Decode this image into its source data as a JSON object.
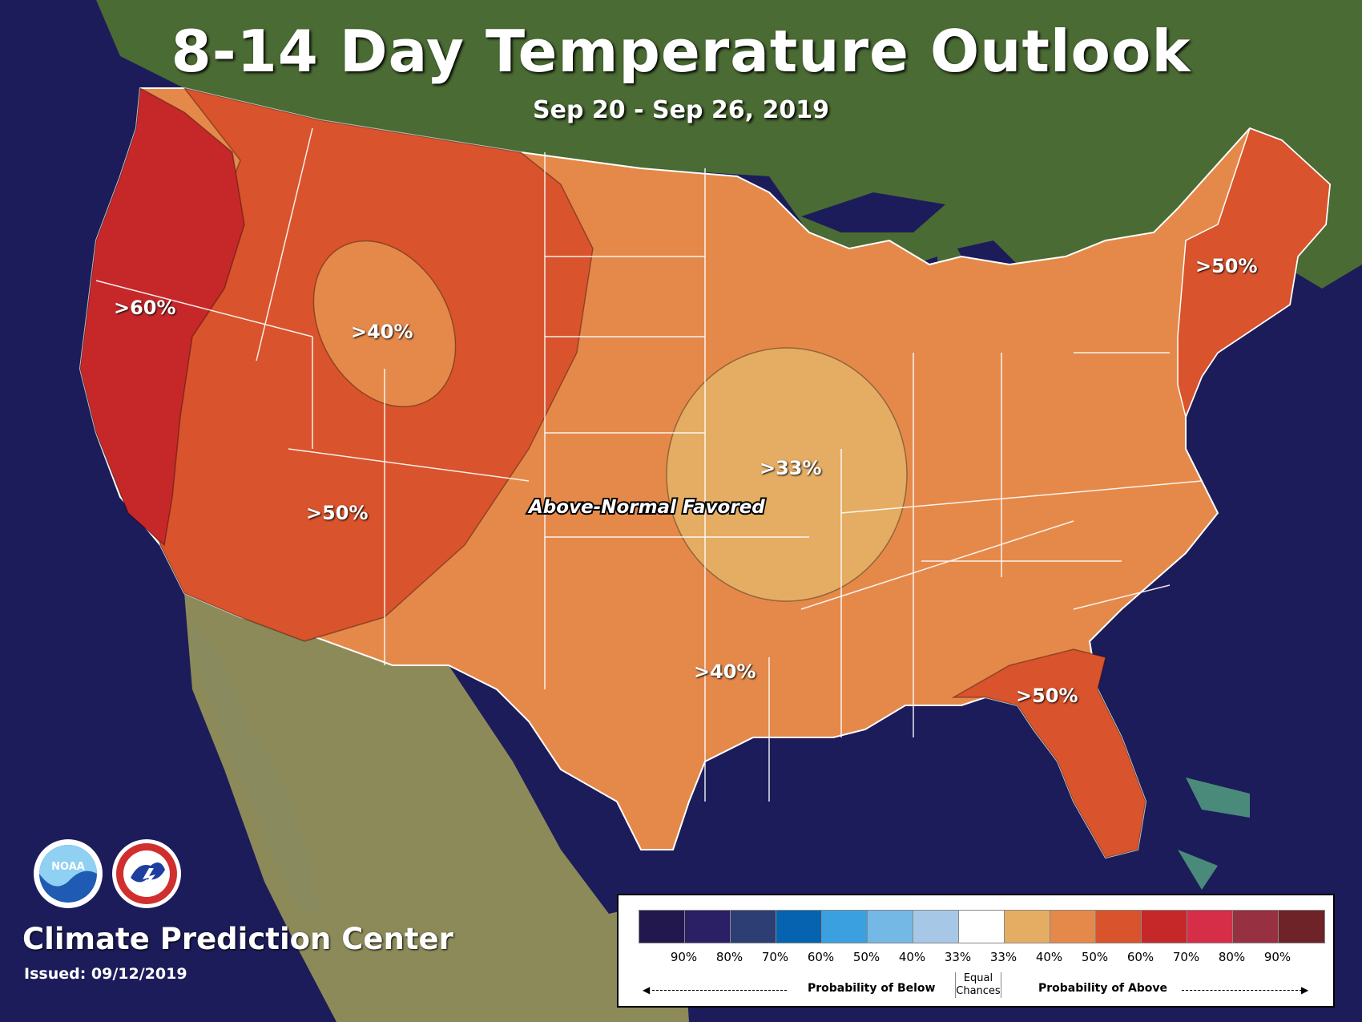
{
  "title": "8-14 Day Temperature Outlook",
  "subtitle": "Sep 20 - Sep 26, 2019",
  "map_labels": {
    "west_coast": ">60%",
    "northern_rockies": ">40%",
    "southwest": ">50%",
    "midwest": ">33%",
    "texas": ">40%",
    "northeast": ">50%",
    "southeast": ">50%",
    "favored": "Above-Normal Favored"
  },
  "footer": {
    "org": "Climate Prediction Center",
    "issued": "Issued: 09/12/2019"
  },
  "logos": {
    "noaa": "noaa-logo",
    "nws": "national-weather-service-logo"
  },
  "legend": {
    "colors": [
      "#22184d",
      "#2b1f66",
      "#2d3e74",
      "#0563b0",
      "#3aa0e0",
      "#74b8e6",
      "#a6c8e6",
      "#ffffff",
      "#e4ad63",
      "#e5894a",
      "#d9532c",
      "#c6282a",
      "#d62e48",
      "#973040",
      "#6d2328"
    ],
    "tick_labels": [
      "90%",
      "80%",
      "70%",
      "60%",
      "50%",
      "40%",
      "33%",
      "33%",
      "40%",
      "50%",
      "60%",
      "70%",
      "80%",
      "90%"
    ],
    "below_label": "Probability of Below",
    "equal_label_1": "Equal",
    "equal_label_2": "Chances",
    "above_label": "Probability of Above"
  },
  "categories": [
    {
      "region": "west-coast",
      "probability": ">60%",
      "color": "#c6282a"
    },
    {
      "region": "interior-west",
      "probability": ">50%",
      "color": "#d9532c"
    },
    {
      "region": "northern-rockies",
      "probability": ">40%",
      "color": "#e5894a"
    },
    {
      "region": "central-plains",
      "probability": ">40%",
      "color": "#e5894a"
    },
    {
      "region": "midwest",
      "probability": ">33%",
      "color": "#e4ad63"
    },
    {
      "region": "northeast",
      "probability": ">50%",
      "color": "#d9532c"
    },
    {
      "region": "florida",
      "probability": ">50%",
      "color": "#d9532c"
    }
  ]
}
